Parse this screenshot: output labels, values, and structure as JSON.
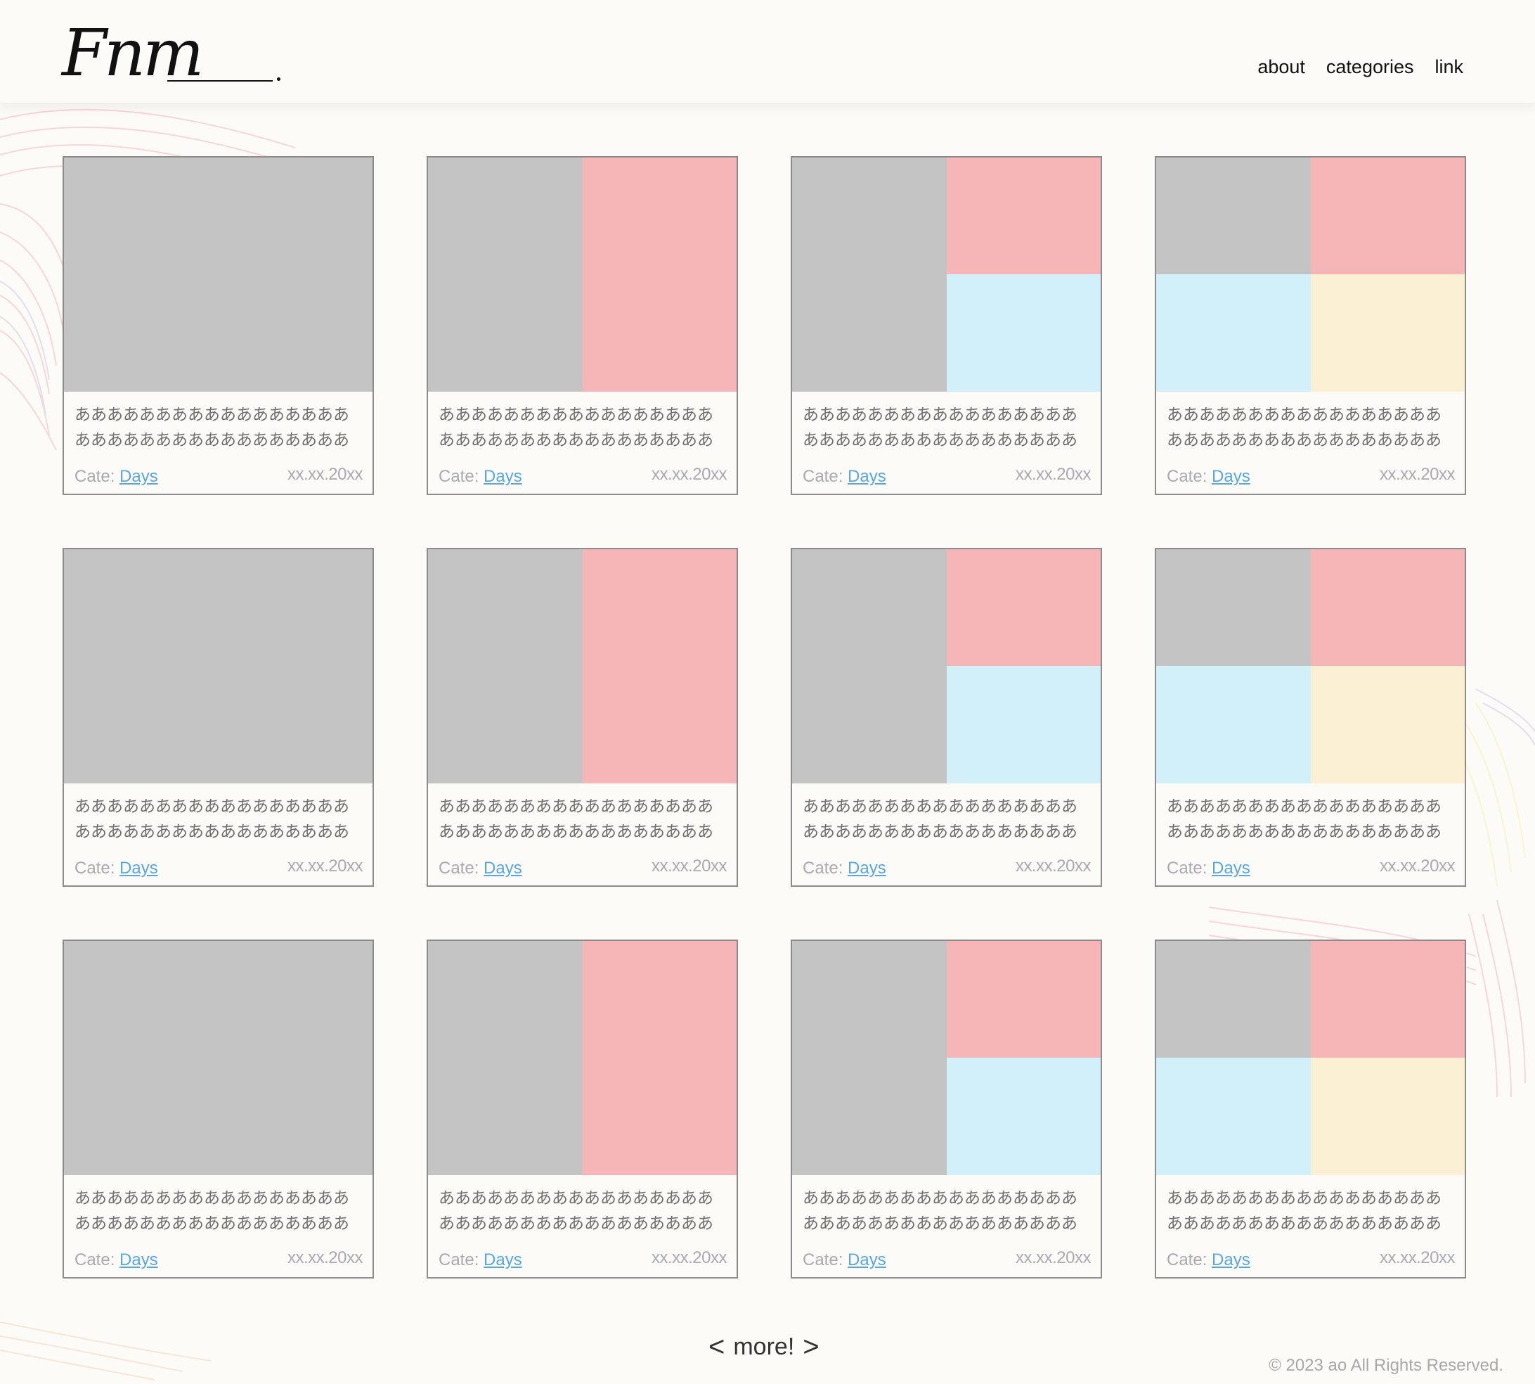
{
  "header": {
    "logo_text": "Fnm",
    "nav": [
      "about",
      "categories",
      "link"
    ]
  },
  "colors": {
    "background": "#fdfbf7",
    "placeholder_gray": "#c4c4c4",
    "pink": "#f6b6b7",
    "light_blue": "#d1f0fa",
    "cream": "#fbf0d4",
    "link_blue": "#5aa7e0"
  },
  "posts": [
    {
      "title": "ああああああああああああああああああああああああああああああああああ",
      "cate_label": "Cate:",
      "category": "Days",
      "date": "xx.xx.20xx",
      "layout": "single"
    },
    {
      "title": "ああああああああああああああああああああああああああああああああああ",
      "cate_label": "Cate:",
      "category": "Days",
      "date": "xx.xx.20xx",
      "layout": "split2"
    },
    {
      "title": "ああああああああああああああああああああああああああああああああああ",
      "cate_label": "Cate:",
      "category": "Days",
      "date": "xx.xx.20xx",
      "layout": "split3"
    },
    {
      "title": "ああああああああああああああああああああああああああああああああああ",
      "cate_label": "Cate:",
      "category": "Days",
      "date": "xx.xx.20xx",
      "layout": "split4"
    },
    {
      "title": "ああああああああああああああああああああああああああああああああああ",
      "cate_label": "Cate:",
      "category": "Days",
      "date": "xx.xx.20xx",
      "layout": "single"
    },
    {
      "title": "ああああああああああああああああああああああああああああああああああ",
      "cate_label": "Cate:",
      "category": "Days",
      "date": "xx.xx.20xx",
      "layout": "split2"
    },
    {
      "title": "ああああああああああああああああああああああああああああああああああ",
      "cate_label": "Cate:",
      "category": "Days",
      "date": "xx.xx.20xx",
      "layout": "split3"
    },
    {
      "title": "ああああああああああああああああああああああああああああああああああ",
      "cate_label": "Cate:",
      "category": "Days",
      "date": "xx.xx.20xx",
      "layout": "split4"
    },
    {
      "title": "ああああああああああああああああああああああああああああああああああ",
      "cate_label": "Cate:",
      "category": "Days",
      "date": "xx.xx.20xx",
      "layout": "single"
    },
    {
      "title": "ああああああああああああああああああああああああああああああああああ",
      "cate_label": "Cate:",
      "category": "Days",
      "date": "xx.xx.20xx",
      "layout": "split2"
    },
    {
      "title": "ああああああああああああああああああああああああああああああああああ",
      "cate_label": "Cate:",
      "category": "Days",
      "date": "xx.xx.20xx",
      "layout": "split3"
    },
    {
      "title": "ああああああああああああああああああああああああああああああああああ",
      "cate_label": "Cate:",
      "category": "Days",
      "date": "xx.xx.20xx",
      "layout": "split4"
    }
  ],
  "pagination": {
    "prev_icon": "chevron-left-icon",
    "label": "more!",
    "next_icon": "chevron-right-icon"
  },
  "footer": {
    "copyright": "© 2023 ao All Rights Reserved."
  }
}
